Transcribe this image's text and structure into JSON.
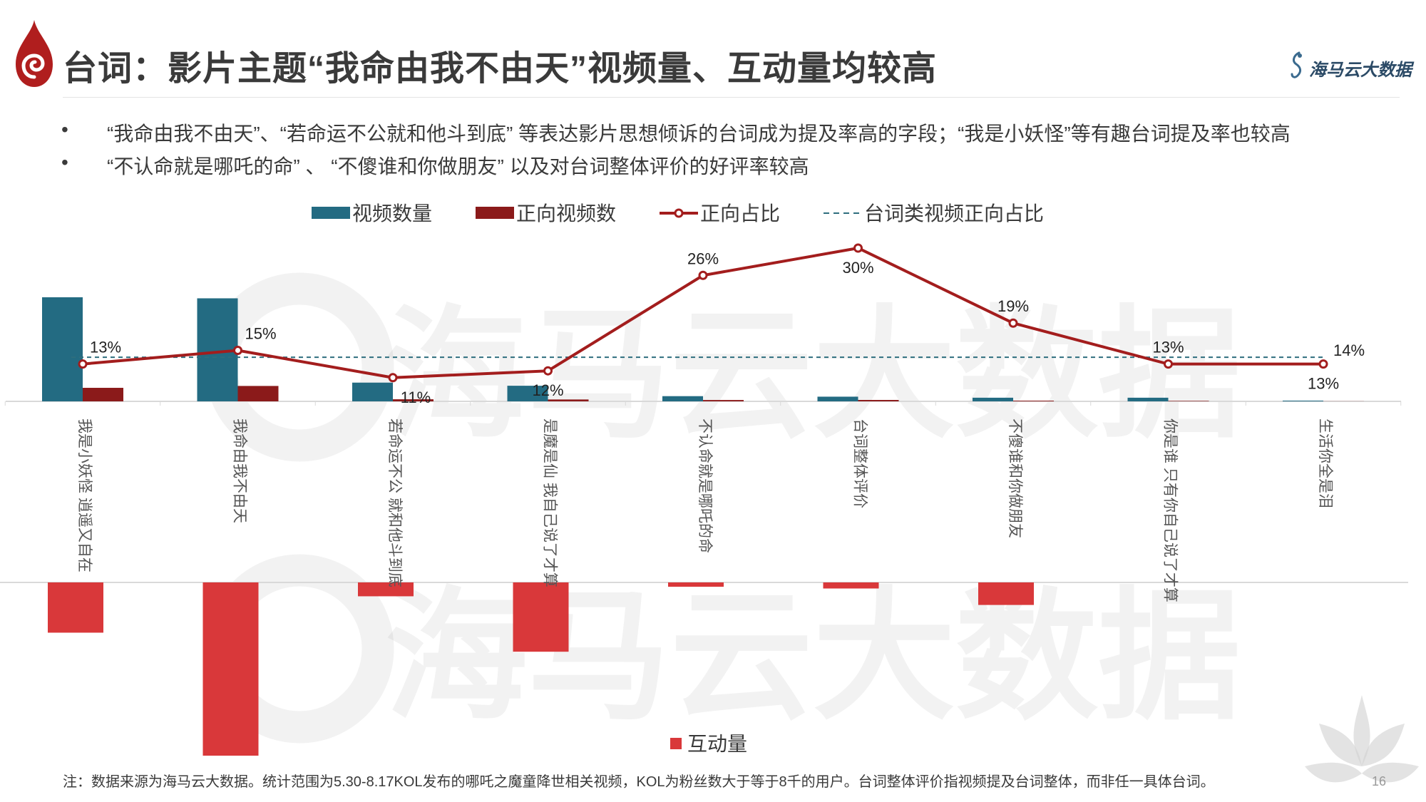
{
  "header": {
    "title": "台词：影片主题“我命由我不由天”视频量、互动量均较高",
    "brand": "海马云大数据"
  },
  "bullets": [
    "“我命由我不由天”、“若命运不公就和他斗到底” 等表达影片思想倾诉的台词成为提及率高的字段；“我是小妖怪”等有趣台词提及率也较高",
    "“不认命就是哪吒的命” 、 “不傻谁和你做朋友” 以及对台词整体评价的好评率较高"
  ],
  "bullet_marker": "•",
  "watermark": "海马云大数据",
  "footnote": "注：数据来源为海马云大数据。统计范围为5.30-8.17KOL发布的哪吒之魔童降世相关视频，KOL为粉丝数大于等于8千的用户。台词整体评价指视频提及台词整体，而非任一具体台词。",
  "page_number": "16",
  "colors": {
    "video_count": "#236b82",
    "positive_videos": "#8b1a1a",
    "positive_ratio": "#a31d1d",
    "reference_line": "#2e6e7e",
    "interaction": "#d9383a"
  },
  "chart_data": {
    "type": "bar",
    "categories": [
      "我是小妖怪 逍遥又自在",
      "我命由我不由天",
      "若命运不公 就和他斗到底",
      "是魔是仙 我自己说了才算",
      "不认命就是哪吒的命",
      "台词整体评价",
      "不傻谁和你做朋友",
      "你是谁 只有你自己说了才算",
      "生活你全是泪"
    ],
    "legend": {
      "video_count": "视频数量",
      "positive_videos": "正向视频数",
      "positive_ratio": "正向占比",
      "reference": "台词类视频正向占比",
      "interaction": "互动量"
    },
    "legend_position": "top",
    "series": [
      {
        "name": "视频数量",
        "type": "bar",
        "values": [
          100,
          99,
          18,
          15,
          5,
          4.5,
          3.5,
          3.5,
          0.7
        ]
      },
      {
        "name": "正向视频数",
        "type": "bar",
        "values": [
          13,
          14.8,
          2,
          1.8,
          1.3,
          1.35,
          0.66,
          0.45,
          0.09
        ]
      },
      {
        "name": "正向占比",
        "type": "line",
        "values": [
          13,
          15,
          11,
          12,
          26,
          30,
          19,
          13,
          13
        ],
        "labels": [
          "13%",
          "15%",
          "11%",
          "12%",
          "26%",
          "30%",
          "19%",
          "13%",
          "13%"
        ]
      },
      {
        "name": "互动量",
        "type": "bar",
        "values": [
          29,
          100,
          8,
          40,
          2.5,
          3.5,
          13,
          0,
          0
        ]
      }
    ],
    "reference_value": 14,
    "reference_label": "14%",
    "ylim_count": [
      0,
      100
    ],
    "ylim_ratio": [
      0,
      30
    ],
    "ylim_interaction": [
      0,
      100
    ],
    "grid": false
  }
}
